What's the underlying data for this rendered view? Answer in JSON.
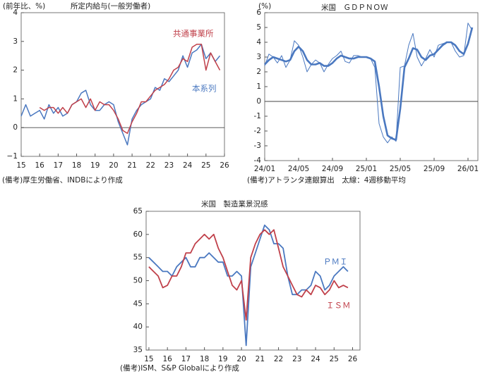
{
  "chart_data": [
    {
      "type": "line",
      "unit_label": "(前年比、%)",
      "title": "所定内給与(一般労働者)",
      "x": [
        15,
        15.25,
        15.5,
        15.75,
        16,
        16.25,
        16.5,
        16.75,
        17,
        17.25,
        17.5,
        17.75,
        18,
        18.25,
        18.5,
        18.75,
        19,
        19.25,
        19.5,
        19.75,
        20,
        20.25,
        20.5,
        20.75,
        21,
        21.25,
        21.5,
        21.75,
        22,
        22.25,
        22.5,
        22.75,
        23,
        23.25,
        23.5,
        23.75,
        24,
        24.25,
        24.5,
        24.75,
        25,
        25.25,
        25.5,
        25.75
      ],
      "series": [
        {
          "name": "本系列",
          "color": "#4a78c0",
          "width": 1.5,
          "values": [
            0.4,
            0.8,
            0.4,
            0.5,
            0.6,
            0.3,
            0.8,
            0.5,
            0.7,
            0.4,
            0.5,
            0.8,
            0.9,
            1.2,
            1.3,
            0.8,
            0.6,
            0.6,
            0.8,
            0.9,
            0.8,
            0.2,
            -0.2,
            -0.6,
            0.3,
            0.6,
            0.8,
            0.9,
            1.0,
            1.4,
            1.3,
            1.7,
            1.6,
            1.8,
            2.0,
            2.5,
            2.1,
            2.6,
            2.7,
            2.9,
            2.4,
            2.6,
            2.3,
            2.5
          ]
        },
        {
          "name": "共通事業所",
          "color": "#c0404a",
          "width": 1.5,
          "values": [
            null,
            null,
            null,
            null,
            0.7,
            0.6,
            0.7,
            0.7,
            0.5,
            0.7,
            0.5,
            0.8,
            0.9,
            1.0,
            0.7,
            1.0,
            0.6,
            0.9,
            0.8,
            0.8,
            0.6,
            0.3,
            -0.1,
            -0.2,
            0.2,
            0.5,
            0.9,
            0.9,
            1.1,
            1.3,
            1.4,
            1.5,
            1.7,
            2.0,
            2.1,
            2.4,
            2.3,
            2.8,
            2.9,
            2.9,
            2.0,
            2.6,
            2.3,
            2.0
          ]
        }
      ],
      "xlim": [
        15,
        26
      ],
      "xticks": [
        15,
        16,
        17,
        18,
        19,
        20,
        21,
        22,
        23,
        24,
        25,
        26
      ],
      "ylim": [
        -1,
        4
      ],
      "yticks": [
        {
          "value": -1,
          "label": "−1"
        },
        0,
        1,
        2,
        3,
        4
      ],
      "refline": 0,
      "note": "(備考)厚生労働省、INDBにより作成"
    },
    {
      "type": "line",
      "unit_label": "(%)",
      "title": "米国　ＧＤＰＮＯＷ",
      "categories": [
        "24/01",
        null,
        null,
        null,
        null,
        null,
        null,
        null,
        "24/05",
        null,
        null,
        null,
        null,
        null,
        null,
        null,
        "24/09",
        null,
        null,
        null,
        null,
        null,
        null,
        null,
        "25/01",
        null,
        null,
        null,
        null,
        null,
        null,
        null,
        "25/05",
        null,
        null,
        null,
        null,
        null,
        null,
        null,
        "25/09",
        null,
        null,
        null,
        null,
        null,
        null,
        null,
        "26/01",
        null
      ],
      "series": [
        {
          "color": "#4a78c0",
          "width": 1,
          "values": [
            2.4,
            3.2,
            3.0,
            2.6,
            3.1,
            2.3,
            2.8,
            4.1,
            3.8,
            3.0,
            2.0,
            2.5,
            2.8,
            2.6,
            2.0,
            2.5,
            2.9,
            3.1,
            3.4,
            2.7,
            2.6,
            3.1,
            3.1,
            3.0,
            3.0,
            2.9,
            2.3,
            -1.5,
            -2.4,
            -2.8,
            -2.4,
            -2.7,
            2.3,
            2.4,
            3.8,
            4.6,
            3.0,
            2.4,
            2.9,
            3.5,
            3.0,
            3.8,
            3.9,
            4.0,
            4.0,
            3.4,
            3.0,
            3.1,
            5.3,
            4.8
          ]
        },
        {
          "color": "#4a78c0",
          "width": 2.6,
          "values": [
            2.5,
            2.8,
            3.0,
            2.9,
            2.8,
            2.7,
            2.8,
            3.4,
            3.7,
            3.4,
            2.8,
            2.5,
            2.5,
            2.6,
            2.4,
            2.4,
            2.6,
            2.9,
            3.1,
            3.0,
            2.9,
            2.9,
            3.0,
            3.0,
            3.0,
            2.9,
            2.7,
            1.0,
            -1.0,
            -2.3,
            -2.5,
            -2.6,
            -0.5,
            2.3,
            2.9,
            3.6,
            3.5,
            3.0,
            2.8,
            3.1,
            3.2,
            3.5,
            3.8,
            4.0,
            4.0,
            3.8,
            3.4,
            3.2,
            3.9,
            5.0
          ]
        }
      ],
      "ylim": [
        -4,
        6
      ],
      "yticks": [
        -4,
        -3,
        -2,
        -1,
        0,
        1,
        2,
        3,
        4,
        5,
        6
      ],
      "refline": 0,
      "note": "(備考)アトランタ連銀算出　太線：4週移動平均"
    },
    {
      "type": "line",
      "title": "米国　製造業景況感",
      "x": [
        15,
        15.25,
        15.5,
        15.75,
        16,
        16.25,
        16.5,
        16.75,
        17,
        17.25,
        17.5,
        17.75,
        18,
        18.25,
        18.5,
        18.75,
        19,
        19.25,
        19.5,
        19.75,
        20,
        20.25,
        20.5,
        20.75,
        21,
        21.25,
        21.5,
        21.75,
        22,
        22.25,
        22.5,
        22.75,
        23,
        23.25,
        23.5,
        23.75,
        24,
        24.25,
        24.5,
        24.75,
        25,
        25.25,
        25.5,
        25.75
      ],
      "series": [
        {
          "name": "ＰＭＩ",
          "color": "#4a78c0",
          "width": 1.8,
          "values": [
            55,
            54,
            53,
            52,
            52,
            51,
            53,
            54,
            55,
            53,
            53,
            55,
            55,
            56,
            55,
            54,
            54,
            51,
            51,
            52,
            51,
            36,
            53,
            56,
            59,
            62,
            61,
            58,
            58,
            57,
            51,
            47,
            47,
            48,
            48,
            49,
            52,
            51,
            48,
            49,
            51,
            52,
            53,
            52
          ]
        },
        {
          "name": "ＩＳＭ",
          "color": "#c0404a",
          "width": 1.8,
          "values": [
            53,
            52,
            51,
            48.5,
            49,
            51,
            51,
            53,
            56,
            56,
            58,
            59,
            60,
            59,
            60,
            57,
            55,
            52,
            49,
            48,
            50,
            41.5,
            55,
            58,
            60,
            61,
            60,
            61,
            57,
            53,
            51,
            49,
            47,
            46.5,
            48,
            47,
            49,
            48.5,
            47,
            48,
            50,
            48.5,
            49,
            48.5
          ]
        }
      ],
      "xlim": [
        14.85,
        26.4
      ],
      "xticks": [
        15,
        16,
        17,
        18,
        19,
        20,
        21,
        22,
        23,
        24,
        25,
        26
      ],
      "ylim": [
        35,
        65
      ],
      "yticks": [
        35,
        40,
        45,
        50,
        55,
        60,
        65
      ],
      "note": "(備考)ISM、S&P Globalにより作成"
    }
  ]
}
